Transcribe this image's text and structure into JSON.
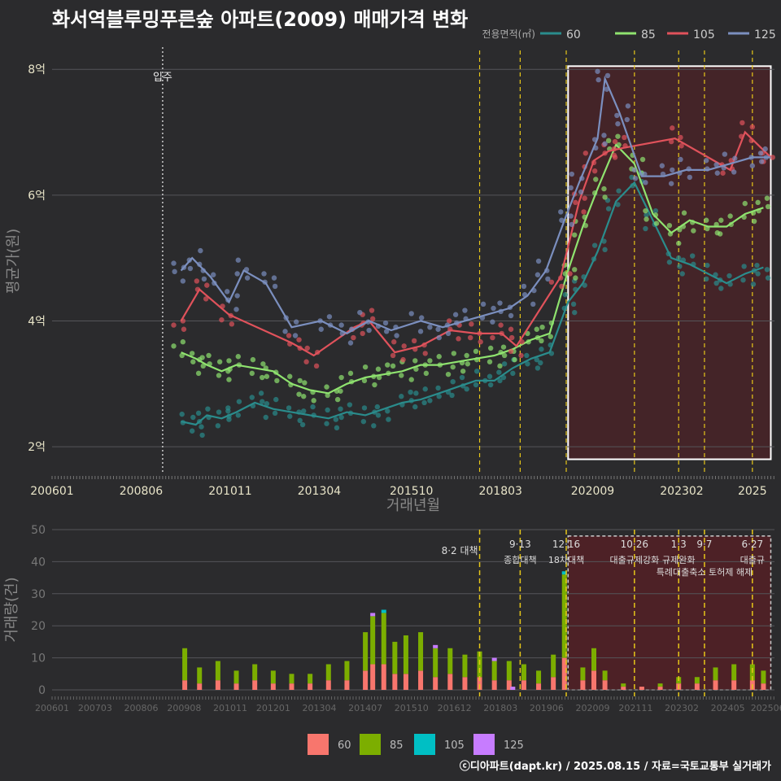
{
  "title": "화서역블루밍푸른숲 아파트(2009) 매매가격 변화",
  "footer": "ⓒ디아파트(dapt.kr) / 2025.08.15 / 자료=국토교통부 실거래가",
  "colors": {
    "bg": "#2b2b2d",
    "grid": "#555559",
    "s60": "#2a8c8c",
    "s85": "#8fe36f",
    "s105": "#e0525b",
    "s125": "#7b8fbf",
    "v60": "#f8766d",
    "v85": "#7cae00",
    "v105": "#00bfc4",
    "v125": "#c77cff",
    "policy": "#e6c619",
    "region": "#5a1f24"
  },
  "chart_data": [
    {
      "type": "line",
      "title": "화서역블루밍푸른숲 아파트(2009) 매매가격 변화",
      "xlabel": "거래년월",
      "ylabel": "평균가(원)",
      "legend_title": "전용면적(㎡)",
      "legend_position": "top-right",
      "x_ticks": [
        "200601",
        "200806",
        "201011",
        "201304",
        "201510",
        "201803",
        "202009",
        "202302",
        "2025"
      ],
      "y_ticks": [
        "2억",
        "4억",
        "6억",
        "8억"
      ],
      "ylim": [
        1.6,
        8.3
      ],
      "move_in_label": "입주",
      "move_in_x": 2009.0,
      "highlight_range": [
        2020.0,
        2025.5
      ],
      "grid": true,
      "series": [
        {
          "name": "60",
          "x": [
            2009.5,
            2009.9,
            2010.2,
            2010.6,
            2011.0,
            2011.5,
            2012.0,
            2012.5,
            2013.0,
            2013.5,
            2014.0,
            2014.5,
            2015.0,
            2015.5,
            2016.0,
            2016.5,
            2017.0,
            2017.5,
            2018.0,
            2018.5,
            2019.0,
            2019.5,
            2020.0,
            2020.4,
            2020.8,
            2021.3,
            2021.8,
            2022.3,
            2022.8,
            2023.3,
            2023.8,
            2024.3,
            2024.8,
            2025.3
          ],
          "y": [
            2.4,
            2.35,
            2.5,
            2.45,
            2.55,
            2.7,
            2.6,
            2.55,
            2.5,
            2.45,
            2.55,
            2.5,
            2.6,
            2.7,
            2.75,
            2.85,
            2.95,
            3.05,
            3.05,
            3.25,
            3.4,
            3.5,
            4.3,
            4.6,
            5.1,
            5.9,
            6.2,
            5.6,
            5.0,
            4.9,
            4.75,
            4.6,
            4.75,
            4.85
          ]
        },
        {
          "name": "85",
          "x": [
            2009.5,
            2009.9,
            2010.2,
            2010.6,
            2011.0,
            2011.5,
            2012.0,
            2012.5,
            2013.0,
            2013.5,
            2014.0,
            2014.5,
            2015.0,
            2015.5,
            2016.0,
            2016.5,
            2017.0,
            2017.5,
            2018.0,
            2018.5,
            2019.0,
            2019.5,
            2020.0,
            2020.4,
            2020.8,
            2021.3,
            2021.8,
            2022.3,
            2022.8,
            2023.3,
            2023.8,
            2024.3,
            2024.8,
            2025.3
          ],
          "y": [
            3.5,
            3.4,
            3.3,
            3.2,
            3.3,
            3.25,
            3.2,
            3.0,
            2.9,
            2.85,
            3.0,
            3.1,
            3.15,
            3.2,
            3.3,
            3.3,
            3.35,
            3.4,
            3.45,
            3.55,
            3.7,
            3.8,
            4.8,
            5.5,
            6.1,
            6.8,
            6.5,
            5.7,
            5.4,
            5.6,
            5.5,
            5.5,
            5.7,
            5.8
          ]
        },
        {
          "name": "105",
          "x": [
            2009.5,
            2010.0,
            2010.8,
            2012.5,
            2013.1,
            2014.2,
            2014.6,
            2015.3,
            2016.0,
            2016.8,
            2017.5,
            2018.2,
            2018.6,
            2019.8,
            2020.3,
            2020.7,
            2021.1,
            2021.5,
            2022.9,
            2024.4,
            2024.8,
            2025.5
          ],
          "y": [
            4.0,
            4.5,
            4.1,
            3.65,
            3.45,
            3.9,
            4.0,
            3.5,
            3.6,
            3.85,
            3.8,
            3.8,
            3.6,
            4.7,
            5.9,
            6.55,
            6.7,
            6.75,
            6.9,
            6.4,
            7.0,
            6.6
          ]
        },
        {
          "name": "125",
          "x": [
            2009.5,
            2009.8,
            2010.3,
            2010.8,
            2011.2,
            2011.8,
            2012.5,
            2013.3,
            2014.0,
            2014.6,
            2015.2,
            2016.0,
            2016.6,
            2017.2,
            2017.8,
            2018.4,
            2018.9,
            2019.4,
            2019.9,
            2020.3,
            2020.8,
            2021.0,
            2021.4,
            2022.0,
            2022.6,
            2023.2,
            2023.8,
            2024.4,
            2025.0,
            2025.5
          ],
          "y": [
            4.8,
            5.0,
            4.7,
            4.3,
            4.8,
            4.6,
            3.9,
            4.0,
            3.8,
            4.0,
            3.85,
            4.0,
            3.9,
            4.0,
            4.1,
            4.2,
            4.4,
            4.8,
            5.6,
            6.2,
            6.9,
            7.85,
            7.3,
            6.3,
            6.3,
            6.4,
            6.4,
            6.5,
            6.6,
            6.6
          ]
        }
      ]
    },
    {
      "type": "bar",
      "ylabel": "거래량(건)",
      "x_ticks": [
        "200601",
        "200703",
        "200806",
        "200908",
        "201011",
        "201201",
        "201304",
        "201407",
        "201510",
        "201612",
        "201803",
        "201906",
        "202009",
        "202111",
        "202302",
        "202405",
        "202506"
      ],
      "y_ticks": [
        "0",
        "10",
        "20",
        "30",
        "40",
        "50"
      ],
      "ylim": [
        0,
        50
      ],
      "legend_position": "bottom",
      "series": [
        {
          "name": "60",
          "x": [
            2009.6,
            2010.0,
            2010.5,
            2011.0,
            2011.5,
            2012.0,
            2012.5,
            2013.0,
            2013.5,
            2014.0,
            2014.5,
            2014.7,
            2015.0,
            2015.3,
            2015.6,
            2016.0,
            2016.4,
            2016.8,
            2017.2,
            2017.6,
            2018.0,
            2018.4,
            2018.8,
            2019.2,
            2019.6,
            2019.9,
            2020.4,
            2020.7,
            2021.0,
            2021.5,
            2022.0,
            2022.5,
            2023.0,
            2023.5,
            2024.0,
            2024.5,
            2025.0,
            2025.3
          ],
          "values": [
            3,
            2,
            3,
            2,
            3,
            2,
            2,
            2,
            3,
            3,
            6,
            8,
            8,
            5,
            5,
            6,
            4,
            5,
            4,
            4,
            3,
            3,
            3,
            2,
            4,
            10,
            3,
            6,
            3,
            1,
            1,
            1,
            2,
            2,
            3,
            3,
            3,
            2
          ]
        },
        {
          "name": "85",
          "x": [
            2009.6,
            2010.0,
            2010.5,
            2011.0,
            2011.5,
            2012.0,
            2012.5,
            2013.0,
            2013.5,
            2014.0,
            2014.5,
            2014.7,
            2015.0,
            2015.3,
            2015.6,
            2016.0,
            2016.4,
            2016.8,
            2017.2,
            2017.6,
            2018.0,
            2018.4,
            2018.8,
            2019.2,
            2019.6,
            2019.9,
            2020.4,
            2020.7,
            2021.0,
            2021.5,
            2022.0,
            2022.5,
            2023.0,
            2023.5,
            2024.0,
            2024.5,
            2025.0,
            2025.3
          ],
          "values": [
            10,
            5,
            6,
            4,
            5,
            4,
            3,
            3,
            5,
            6,
            12,
            15,
            16,
            10,
            12,
            12,
            9,
            8,
            7,
            8,
            6,
            6,
            5,
            4,
            7,
            26,
            4,
            7,
            3,
            1,
            0,
            1,
            2,
            2,
            4,
            5,
            5,
            4
          ]
        },
        {
          "name": "105",
          "x": [
            2015.0,
            2019.9
          ],
          "values": [
            1,
            1
          ]
        },
        {
          "name": "125",
          "x": [
            2014.7,
            2016.4,
            2018.0,
            2018.5
          ],
          "values": [
            1,
            1,
            1,
            1
          ]
        }
      ],
      "highlight_range": [
        2020.0,
        2025.5
      ],
      "policies": [
        {
          "date": "8·2 대책",
          "x": 2017.6,
          "line1": "8·2 대책",
          "line2": ""
        },
        {
          "date": "9·13",
          "x": 2018.7,
          "line1": "9·13",
          "line2": "종합대책"
        },
        {
          "date": "12·16",
          "x": 2019.95,
          "line1": "12·16",
          "line2": "18차대책"
        },
        {
          "date": "10·26",
          "x": 2021.8,
          "line1": "10·26",
          "line2": "대출규제강화"
        },
        {
          "date": "1·3",
          "x": 2023.0,
          "line1": "1·3",
          "line2": "규제완화"
        },
        {
          "date": "9·7",
          "x": 2023.7,
          "line1": "9·7",
          "line2": "특례대출축소 토허제 해제"
        },
        {
          "date": "6·27",
          "x": 2025.0,
          "line1": "6·27",
          "line2": "대출규"
        }
      ]
    }
  ]
}
